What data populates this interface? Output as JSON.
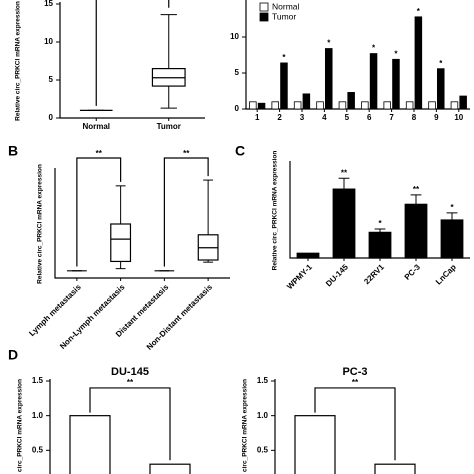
{
  "chart_data": [
    {
      "type": "box",
      "ylabel": "Relative circ_PRKCI mRNA expression",
      "categories": [
        "Normal",
        "Tumor"
      ],
      "boxes": [
        {
          "min": 1,
          "q1": 1,
          "median": 1,
          "q3": 1,
          "max": 1
        },
        {
          "min": 1.3,
          "q1": 4.2,
          "median": 5.3,
          "q3": 6.5,
          "max": 13.6
        }
      ],
      "ylim": [
        0,
        15
      ],
      "yticks": [
        0,
        5,
        10,
        15
      ]
    },
    {
      "type": "bar",
      "categories": [
        "1",
        "2",
        "3",
        "4",
        "5",
        "6",
        "7",
        "8",
        "9",
        "10"
      ],
      "series": [
        {
          "name": "Normal",
          "color": "#ffffff",
          "values": [
            1,
            1,
            1,
            1,
            1,
            1,
            1,
            1,
            1,
            1
          ]
        },
        {
          "name": "Tumor",
          "color": "#000000",
          "values": [
            0.8,
            6.4,
            2.1,
            8.4,
            2.3,
            7.7,
            6.9,
            12.8,
            5.6,
            1.8
          ]
        }
      ],
      "significance": [
        null,
        "*",
        null,
        "*",
        null,
        "*",
        "*",
        "*",
        "*",
        null
      ],
      "legend": "top-left",
      "ylim": [
        0,
        15
      ],
      "yticks": [
        0,
        5,
        10
      ]
    },
    {
      "type": "box",
      "panel": "B",
      "ylabel": "Relative circ_PRKCI mRNA expression",
      "categories": [
        "Lymph metastasis",
        "Non-Lymph metastasis",
        "Distant metastasis",
        "Non-Distant metastasis"
      ],
      "boxes": [
        {
          "min": 1,
          "q1": 1,
          "median": 1,
          "q3": 1,
          "max": 1
        },
        {
          "min": 1.3,
          "q1": 2.3,
          "median": 5.4,
          "q3": 7.5,
          "max": 12.8
        },
        {
          "min": 1,
          "q1": 1,
          "median": 1,
          "q3": 1,
          "max": 1
        },
        {
          "min": 2.2,
          "q1": 2.5,
          "median": 4.2,
          "q3": 6,
          "max": 13.6
        }
      ],
      "significance": [
        "**",
        "**"
      ],
      "ylim": [
        0,
        15
      ]
    },
    {
      "type": "bar",
      "panel": "C",
      "ylabel": "Relative circ_PRKCI mRNA expression",
      "categories": [
        "WPMY-1",
        "DU-145",
        "22RV1",
        "PC-3",
        "LnCap"
      ],
      "values": [
        1,
        14.5,
        5.4,
        11.3,
        8
      ],
      "errors": [
        0,
        2.3,
        0.7,
        2,
        1.5
      ],
      "color": "#000000",
      "significance": [
        null,
        "**",
        "*",
        "**",
        "*"
      ],
      "ylim": [
        0,
        20
      ]
    },
    {
      "type": "bar",
      "panel": "D",
      "title": "DU-145",
      "ylabel": "circ_PRKCI mRNA expression",
      "values": [
        1,
        0.3
      ],
      "color": "#ffffff",
      "significance": "**",
      "ylim": [
        0,
        1.5
      ],
      "yticks": [
        0.5,
        {
          "value": 1,
          "label": "1.0"
        },
        1.5
      ]
    },
    {
      "type": "bar",
      "title": "PC-3",
      "ylabel": "circ_PRKCI mRNA expression",
      "values": [
        1,
        0.3
      ],
      "color": "#ffffff",
      "significance": "**",
      "ylim": [
        0,
        1.5
      ],
      "yticks": [
        0.5,
        {
          "value": 1,
          "label": "1.0"
        },
        1.5
      ]
    }
  ]
}
